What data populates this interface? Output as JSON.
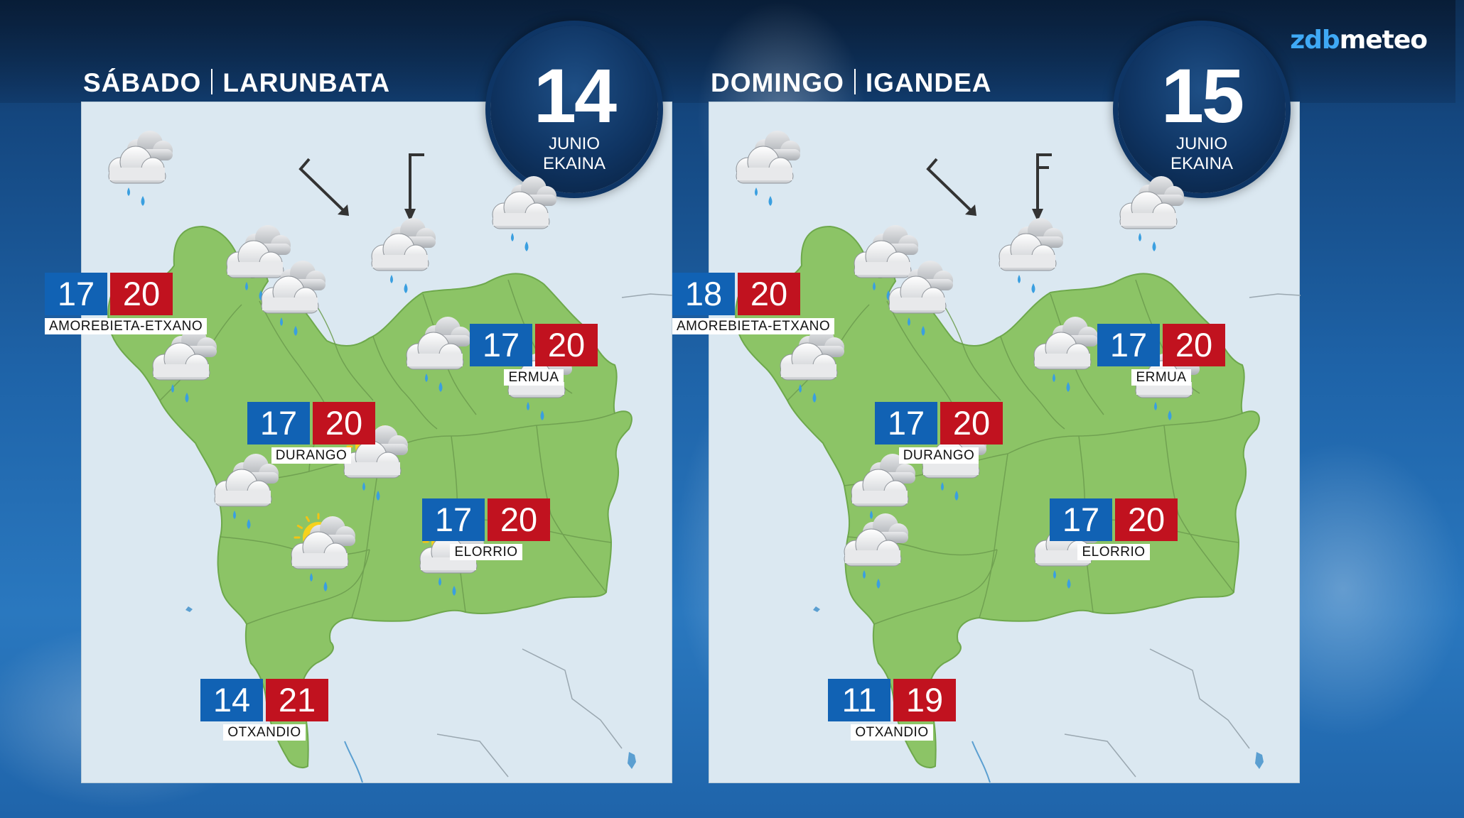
{
  "brand": {
    "part1": "zdb",
    "part2": "meteo"
  },
  "colors": {
    "min_temp": "#1162b4",
    "max_temp": "#c1121f",
    "land": "#8cc466",
    "sea": "#dbe8f1",
    "accent": "#3fa9f5"
  },
  "days": [
    {
      "title_es": "SÁBADO",
      "title_eu": "LARUNBATA",
      "date_number": "14",
      "month_es": "JUNIO",
      "month_eu": "EKAINA",
      "wind_arrows": [
        "arrow-northwest-icon",
        "arrow-north-icon"
      ],
      "locations": [
        {
          "city": "AMOREBIETA-ETXANO",
          "min": "17",
          "max": "20"
        },
        {
          "city": "ERMUA",
          "min": "17",
          "max": "20"
        },
        {
          "city": "DURANGO",
          "min": "17",
          "max": "20"
        },
        {
          "city": "ELORRIO",
          "min": "17",
          "max": "20"
        },
        {
          "city": "OTXANDIO",
          "min": "14",
          "max": "21"
        }
      ],
      "weather_icons": [
        "rain-cloud-icon",
        "rain-cloud-icon",
        "rain-cloud-icon",
        "rain-cloud-icon",
        "rain-cloud-icon",
        "rain-cloud-icon",
        "rain-cloud-icon",
        "rain-cloud-icon",
        "sun-rain-cloud-icon",
        "rain-cloud-icon",
        "sun-rain-cloud-icon",
        "sun-rain-cloud-icon"
      ]
    },
    {
      "title_es": "DOMINGO",
      "title_eu": "IGANDEA",
      "date_number": "15",
      "month_es": "JUNIO",
      "month_eu": "EKAINA",
      "wind_arrows": [
        "arrow-northwest-icon",
        "arrow-north-icon"
      ],
      "locations": [
        {
          "city": "AMOREBIETA-ETXANO",
          "min": "18",
          "max": "20"
        },
        {
          "city": "ERMUA",
          "min": "17",
          "max": "20"
        },
        {
          "city": "DURANGO",
          "min": "17",
          "max": "20"
        },
        {
          "city": "ELORRIO",
          "min": "17",
          "max": "20"
        },
        {
          "city": "OTXANDIO",
          "min": "11",
          "max": "19"
        }
      ],
      "weather_icons": [
        "rain-cloud-icon",
        "rain-cloud-icon",
        "rain-cloud-icon",
        "rain-cloud-icon",
        "rain-cloud-icon",
        "rain-cloud-icon",
        "rain-cloud-icon",
        "rain-cloud-icon",
        "rain-cloud-icon",
        "rain-cloud-icon",
        "rain-cloud-icon",
        "rain-cloud-icon"
      ]
    }
  ]
}
